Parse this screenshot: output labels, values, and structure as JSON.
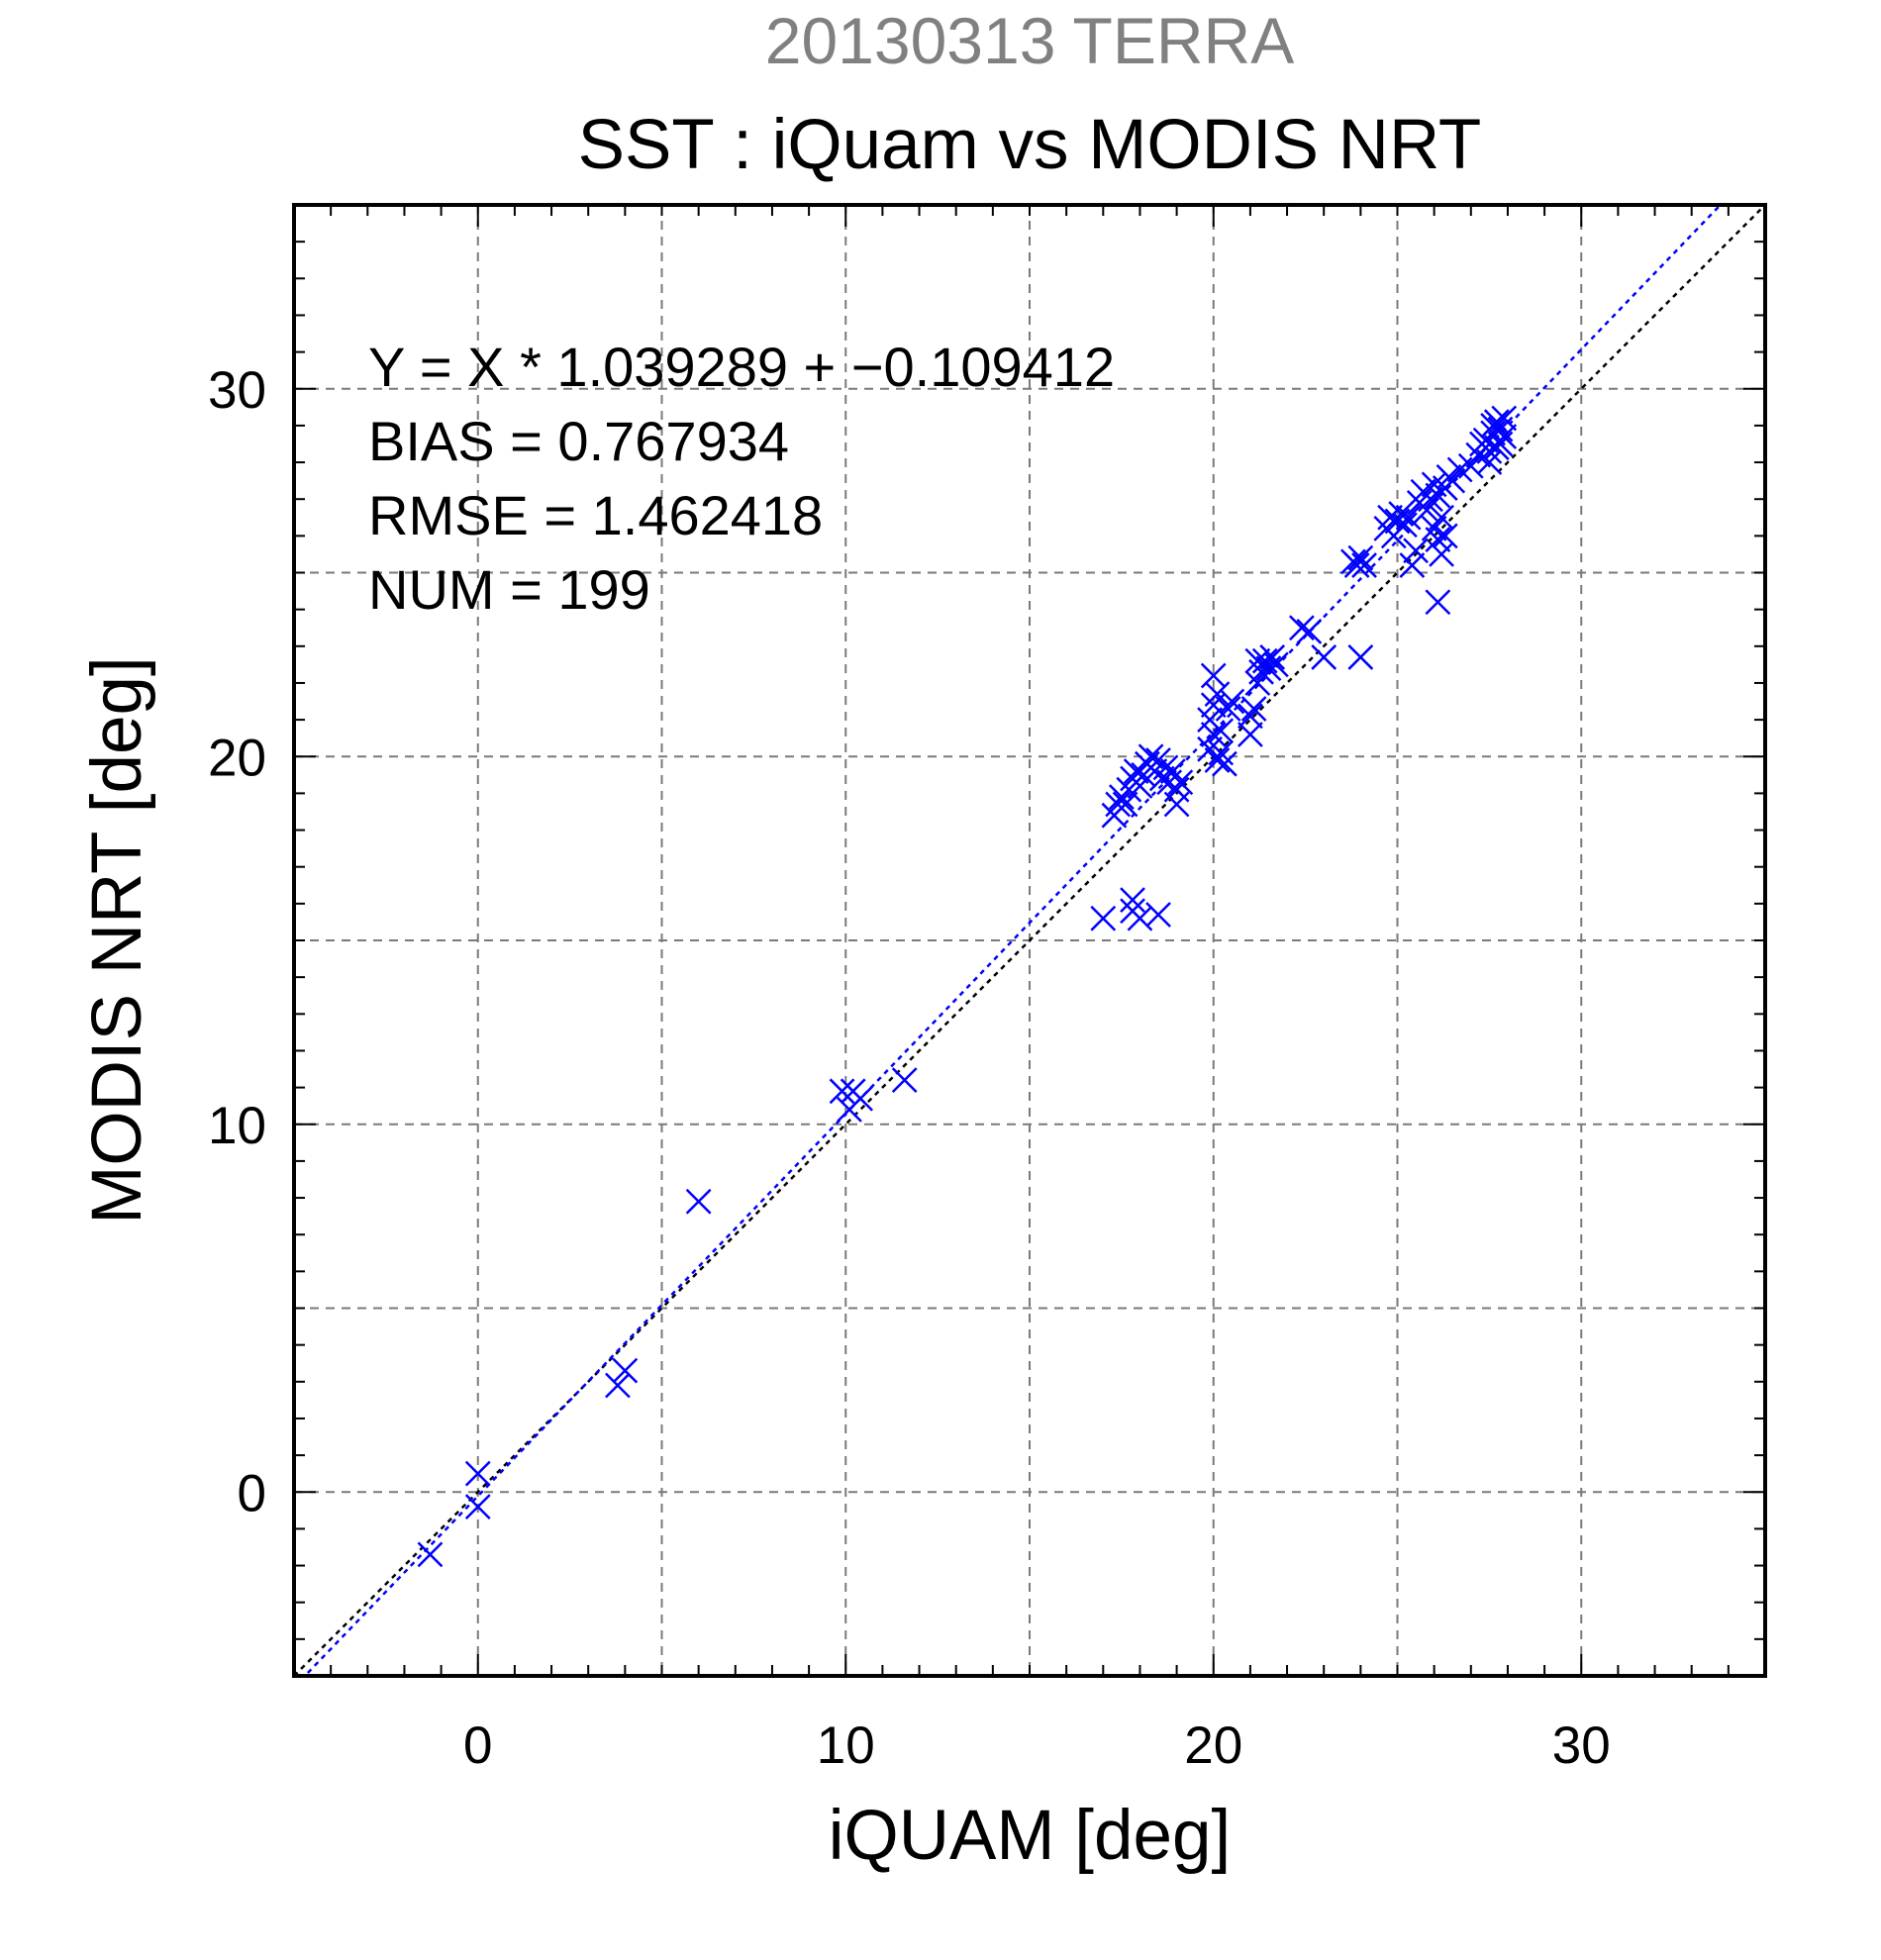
{
  "chart_data": {
    "type": "scatter",
    "title_line1": "20130313 TERRA",
    "title_line2": "SST : iQuam vs MODIS NRT",
    "xlabel": "iQUAM [deg]",
    "ylabel": "MODIS NRT [deg]",
    "xlim": [
      -5,
      35
    ],
    "ylim": [
      -5,
      35
    ],
    "major_ticks": [
      0,
      10,
      20,
      30
    ],
    "tick_labels": [
      "0",
      "10",
      "20",
      "30"
    ],
    "grid": true,
    "annotations": [
      "Y = X * 1.039289 + −0.109412",
      "BIAS = 0.767934",
      "RMSE = 1.462418",
      "NUM = 199"
    ],
    "fit_line": {
      "slope": 1.039289,
      "intercept": -0.109412,
      "color": "#0000ff"
    },
    "identity_line": {
      "slope": 1,
      "intercept": 0,
      "color": "#000000"
    },
    "marker_color": "#0000ff",
    "series": [
      {
        "marker": "x",
        "points": [
          [
            -1.3,
            -1.7
          ],
          [
            0.0,
            0.5
          ],
          [
            0.0,
            -0.4
          ],
          [
            3.8,
            2.9
          ],
          [
            4.0,
            3.3
          ],
          [
            6.0,
            7.9
          ],
          [
            9.9,
            10.9
          ],
          [
            10.1,
            10.4
          ],
          [
            10.2,
            10.9
          ],
          [
            10.4,
            10.7
          ],
          [
            11.6,
            11.2
          ],
          [
            17.0,
            15.6
          ],
          [
            17.8,
            15.8
          ],
          [
            17.8,
            16.1
          ],
          [
            18.0,
            15.6
          ],
          [
            18.5,
            15.7
          ],
          [
            17.3,
            18.4
          ],
          [
            17.4,
            18.7
          ],
          [
            17.5,
            18.9
          ],
          [
            17.6,
            18.7
          ],
          [
            17.7,
            19.1
          ],
          [
            17.8,
            19.4
          ],
          [
            17.9,
            19.6
          ],
          [
            18.0,
            19.2
          ],
          [
            18.1,
            19.5
          ],
          [
            18.2,
            19.8
          ],
          [
            18.3,
            20.0
          ],
          [
            18.4,
            19.6
          ],
          [
            18.5,
            19.9
          ],
          [
            18.6,
            19.4
          ],
          [
            18.7,
            19.7
          ],
          [
            18.8,
            19.3
          ],
          [
            18.9,
            19.6
          ],
          [
            19.0,
            19.1
          ],
          [
            19.0,
            18.7
          ],
          [
            19.1,
            19.3
          ],
          [
            19.9,
            21.0
          ],
          [
            20.0,
            21.4
          ],
          [
            20.0,
            22.2
          ],
          [
            20.1,
            21.7
          ],
          [
            19.9,
            20.2
          ],
          [
            20.0,
            20.6
          ],
          [
            20.1,
            19.9
          ],
          [
            20.2,
            20.1
          ],
          [
            20.3,
            19.8
          ],
          [
            20.4,
            21.3
          ],
          [
            20.5,
            21.5
          ],
          [
            20.2,
            20.7
          ],
          [
            21.0,
            20.6
          ],
          [
            21.0,
            21.1
          ],
          [
            21.1,
            21.3
          ],
          [
            21.2,
            22.0
          ],
          [
            21.3,
            22.3
          ],
          [
            21.4,
            22.6
          ],
          [
            21.5,
            22.4
          ],
          [
            21.6,
            22.7
          ],
          [
            21.2,
            22.6
          ],
          [
            21.7,
            22.5
          ],
          [
            22.4,
            23.5
          ],
          [
            22.6,
            23.4
          ],
          [
            23.0,
            22.7
          ],
          [
            24.0,
            22.7
          ],
          [
            23.8,
            25.3
          ],
          [
            23.9,
            25.2
          ],
          [
            24.0,
            25.4
          ],
          [
            24.1,
            25.2
          ],
          [
            24.7,
            26.2
          ],
          [
            24.8,
            26.5
          ],
          [
            24.9,
            26.0
          ],
          [
            25.0,
            26.4
          ],
          [
            25.1,
            26.6
          ],
          [
            25.2,
            26.3
          ],
          [
            25.3,
            26.5
          ],
          [
            25.4,
            25.2
          ],
          [
            25.5,
            25.6
          ],
          [
            25.6,
            26.9
          ],
          [
            25.7,
            27.2
          ],
          [
            25.8,
            26.7
          ],
          [
            25.9,
            27.0
          ],
          [
            26.0,
            27.4
          ],
          [
            26.1,
            27.1
          ],
          [
            26.2,
            26.5
          ],
          [
            26.3,
            27.3
          ],
          [
            26.4,
            27.6
          ],
          [
            26.0,
            26.2
          ],
          [
            26.1,
            25.9
          ],
          [
            26.2,
            25.5
          ],
          [
            26.3,
            26.0
          ],
          [
            26.1,
            24.2
          ],
          [
            26.5,
            27.5
          ],
          [
            26.7,
            27.8
          ],
          [
            27.0,
            27.9
          ],
          [
            27.2,
            28.2
          ],
          [
            27.4,
            28.6
          ],
          [
            27.5,
            28.3
          ],
          [
            27.6,
            28.8
          ],
          [
            27.7,
            29.1
          ],
          [
            27.8,
            28.5
          ],
          [
            27.9,
            29.2
          ],
          [
            27.5,
            28.0
          ],
          [
            27.7,
            28.4
          ],
          [
            27.8,
            28.9
          ],
          [
            27.9,
            28.7
          ],
          [
            27.3,
            28.5
          ],
          [
            27.6,
            29.0
          ]
        ]
      }
    ]
  }
}
